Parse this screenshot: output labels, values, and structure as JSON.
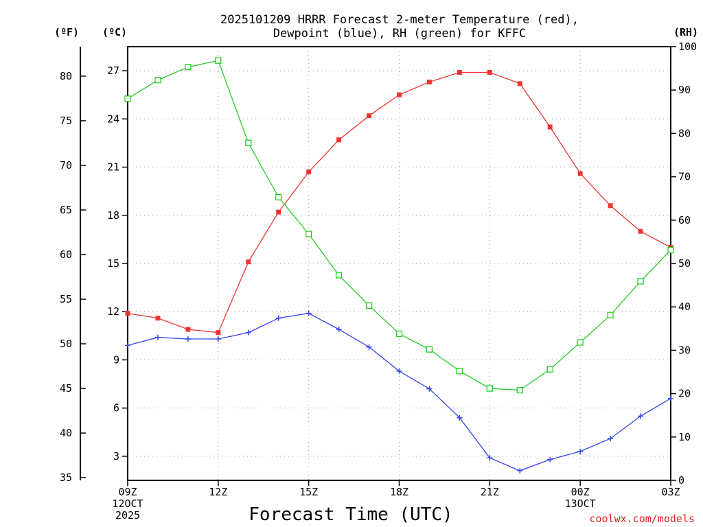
{
  "chart_data": {
    "type": "line",
    "title_lines": [
      "2025101209 HRRR Forecast 2-meter Temperature (red),",
      "Dewpoint (blue), RH (green) for KFFC"
    ],
    "xlabel": "Forecast Time (UTC)",
    "credit": "coolwx.com/models",
    "x_range": [
      0,
      18
    ],
    "x_ticks": [
      {
        "x": 0,
        "lines": [
          "09Z",
          "12OCT",
          "2025"
        ]
      },
      {
        "x": 3,
        "lines": [
          "12Z"
        ]
      },
      {
        "x": 6,
        "lines": [
          "15Z"
        ]
      },
      {
        "x": 9,
        "lines": [
          "18Z"
        ]
      },
      {
        "x": 12,
        "lines": [
          "21Z"
        ]
      },
      {
        "x": 15,
        "lines": [
          "00Z",
          "13OCT"
        ]
      },
      {
        "x": 18,
        "lines": [
          "03Z"
        ]
      }
    ],
    "y_celsius": {
      "label": "(ºC)",
      "range": [
        1.5,
        28.5
      ],
      "ticks": [
        3,
        6,
        9,
        12,
        15,
        18,
        21,
        24,
        27
      ]
    },
    "y_fahrenheit": {
      "label": "(ºF)",
      "ticks": [
        35,
        40,
        45,
        50,
        55,
        60,
        65,
        70,
        75,
        80
      ]
    },
    "y_rh": {
      "label": "(RH)",
      "range": [
        0,
        100
      ],
      "ticks": [
        0,
        10,
        20,
        30,
        40,
        50,
        60,
        70,
        80,
        90,
        100
      ]
    },
    "series": [
      {
        "name": "Temperature",
        "units": "C",
        "axis": "celsius",
        "color": "#ee3333",
        "marker": "filled-square",
        "x": [
          0,
          1,
          2,
          3,
          4,
          5,
          6,
          7,
          8,
          9,
          10,
          11,
          12,
          13,
          14,
          15,
          16,
          17,
          18
        ],
        "values": [
          11.9,
          11.6,
          10.9,
          10.7,
          15.1,
          18.2,
          20.7,
          22.7,
          24.2,
          25.5,
          26.3,
          26.9,
          26.9,
          26.2,
          23.5,
          20.6,
          18.6,
          17.0,
          16.0
        ]
      },
      {
        "name": "Dewpoint",
        "units": "C",
        "axis": "celsius",
        "color": "#3344ee",
        "marker": "plus",
        "x": [
          0,
          1,
          2,
          3,
          4,
          5,
          6,
          7,
          8,
          9,
          10,
          11,
          12,
          13,
          14,
          15,
          16,
          17,
          18
        ],
        "values": [
          9.9,
          10.4,
          10.3,
          10.3,
          10.7,
          11.6,
          11.9,
          10.9,
          9.8,
          8.3,
          7.2,
          5.4,
          2.9,
          2.1,
          2.8,
          3.3,
          4.1,
          5.5,
          6.6
        ]
      },
      {
        "name": "RH",
        "units": "%",
        "axis": "rh",
        "color": "#22cc22",
        "marker": "open-square",
        "x": [
          0,
          1,
          2,
          3,
          4,
          5,
          6,
          7,
          8,
          9,
          10,
          11,
          12,
          13,
          14,
          15,
          16,
          17,
          18
        ],
        "values": [
          88,
          92.3,
          95.3,
          96.8,
          77.8,
          65.3,
          56.8,
          47.3,
          40.3,
          33.8,
          30.2,
          25.2,
          21.2,
          20.8,
          25.6,
          31.8,
          38.1,
          45.9,
          53.1
        ]
      }
    ]
  }
}
